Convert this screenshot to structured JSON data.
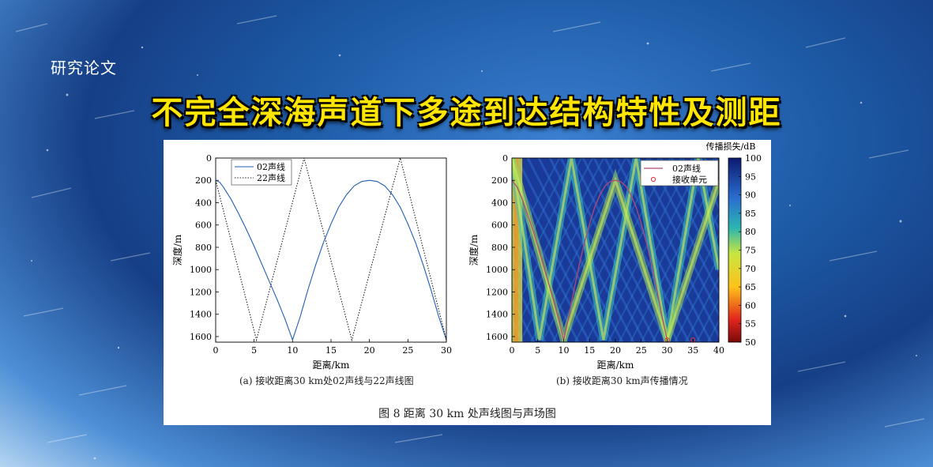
{
  "header": {
    "tag": "研究论文",
    "title": "不完全深海声道下多途到达结构特性及测距"
  },
  "figure": {
    "caption": "图 8   距离 30 km 处声线图与声场图",
    "panel_a_caption": "(a) 接收距离30 km处02声线与22声线图",
    "panel_b_caption": "(b) 接收距离30 km声传播情况"
  },
  "colors": {
    "title_yellow": "#ffe600",
    "ray02": "#1f5fb5",
    "ray02_b": "#b04a78",
    "receiver": "#e03030"
  },
  "chart_data": [
    {
      "type": "line",
      "panel": "a",
      "xlabel": "距离/km",
      "ylabel": "深度/m",
      "xlim": [
        0,
        30
      ],
      "ylim": [
        1650,
        0
      ],
      "x_ticks": [
        0,
        5,
        10,
        15,
        20,
        25,
        30
      ],
      "y_ticks": [
        0,
        200,
        400,
        600,
        800,
        1000,
        1200,
        1400,
        1600
      ],
      "legend_position": "top-left",
      "series": [
        {
          "name": "02声线",
          "style": "solid",
          "x": [
            0,
            0.5,
            1,
            2,
            3,
            4,
            5,
            6,
            7,
            8,
            9,
            10,
            11,
            12,
            13,
            14,
            15,
            16,
            17,
            18,
            19,
            20,
            21,
            22,
            23,
            24,
            25,
            26,
            27,
            28,
            29,
            30
          ],
          "y": [
            200,
            215,
            260,
            370,
            500,
            640,
            790,
            950,
            1110,
            1270,
            1440,
            1630,
            1420,
            1180,
            960,
            760,
            590,
            440,
            330,
            250,
            210,
            200,
            210,
            250,
            330,
            440,
            590,
            760,
            960,
            1180,
            1420,
            1630
          ]
        },
        {
          "name": "22声线",
          "style": "dotted",
          "x": [
            0,
            5.3,
            11.5,
            17.7,
            24,
            30
          ],
          "y": [
            200,
            1630,
            0,
            1630,
            0,
            1630
          ]
        }
      ]
    },
    {
      "type": "heatmap",
      "panel": "b",
      "xlabel": "距离/km",
      "ylabel": "深度/m",
      "xlim": [
        0,
        40
      ],
      "ylim": [
        1650,
        0
      ],
      "x_ticks": [
        0,
        5,
        10,
        15,
        20,
        25,
        30,
        35,
        40
      ],
      "y_ticks": [
        0,
        200,
        400,
        600,
        800,
        1000,
        1200,
        1400,
        1600
      ],
      "colorbar_label": "传播损失/dB",
      "colorbar_ticks": [
        50,
        55,
        60,
        65,
        70,
        75,
        80,
        85,
        90,
        95,
        100
      ],
      "colorbar_range": [
        50,
        100
      ],
      "legend_position": "top-right",
      "series": [
        {
          "name": "02声线",
          "style": "solid",
          "x": [
            0,
            1,
            2,
            3,
            4,
            5,
            6,
            7,
            8,
            9,
            10,
            11,
            12,
            13,
            14,
            15,
            16,
            17,
            18,
            19,
            20,
            21,
            22,
            23,
            24,
            25,
            26,
            27,
            28,
            29,
            30
          ],
          "y": [
            200,
            260,
            370,
            500,
            640,
            790,
            950,
            1110,
            1270,
            1440,
            1630,
            1420,
            1180,
            960,
            760,
            590,
            440,
            330,
            250,
            210,
            200,
            210,
            250,
            330,
            440,
            590,
            760,
            960,
            1180,
            1420,
            1630
          ]
        },
        {
          "name": "接收单元",
          "style": "marker",
          "x": [
            30,
            35
          ],
          "y": [
            1630,
            1630
          ]
        }
      ]
    }
  ]
}
